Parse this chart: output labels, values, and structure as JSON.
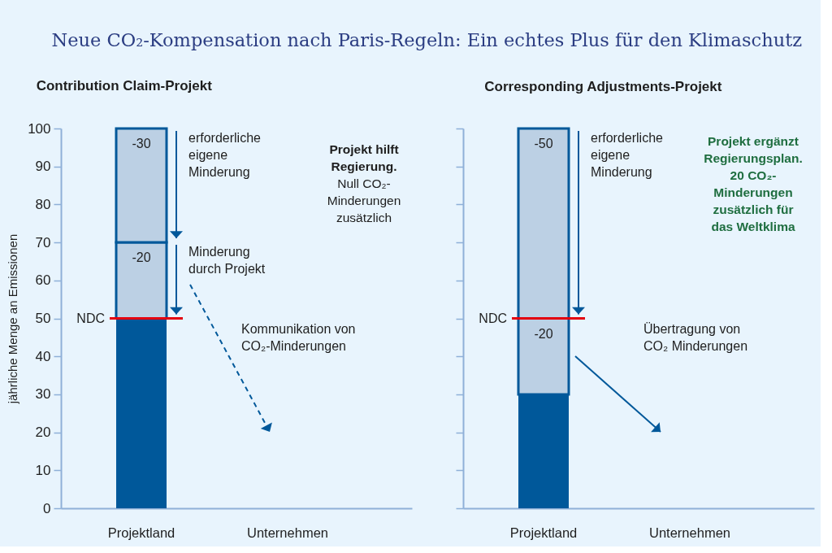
{
  "chart_data": [
    {
      "type": "bar",
      "title": "Neue CO₂-Kompensation nach Paris-Regeln: Ein echtes Plus für den Klimaschutz",
      "subtitle": "Contribution Claim-Projekt",
      "ylabel": "jährliche Menge an Emissionen",
      "categories": [
        "Projektland",
        "Unternehmen"
      ],
      "stacked": true,
      "series": [
        {
          "color": "#00589a",
          "values": [
            50,
            null
          ]
        },
        {
          "name": "Minderung durch Projekt",
          "color": "#bcd0e4",
          "values": [
            20,
            null
          ]
        },
        {
          "name": "erforderliche eigene Minderung",
          "color": "#bcd0e4",
          "values": [
            30,
            null
          ]
        }
      ],
      "ylim": [
        0,
        100
      ],
      "yticks": [
        0,
        10,
        20,
        30,
        40,
        50,
        60,
        70,
        80,
        90,
        100
      ],
      "ref_lines": [
        {
          "axis": "y",
          "value": 50,
          "label": "NDC",
          "color": "#e3000f"
        }
      ],
      "annotations": [
        "Projekt hilft Regierung. Null CO₂-Minderungen zusätzlich",
        "Kommunikation von CO₂-Minderungen",
        "-20",
        "-30"
      ]
    },
    {
      "type": "bar",
      "subtitle": "Corresponding Adjustments-Projekt",
      "categories": [
        "Projektland",
        "Unternehmen"
      ],
      "stacked": true,
      "series": [
        {
          "color": "#00589a",
          "values": [
            30,
            null
          ]
        },
        {
          "color": "#bcd0e4",
          "values": [
            20,
            null
          ]
        },
        {
          "name": "erforderliche eigene Minderung",
          "color": "#bcd0e4",
          "values": [
            50,
            null
          ]
        }
      ],
      "ylim": [
        0,
        100
      ],
      "yticks": [
        0,
        10,
        20,
        30,
        40,
        50,
        60,
        70,
        80,
        90,
        100
      ],
      "tick_labels": "x",
      "ref_lines": [
        {
          "axis": "y",
          "value": 50,
          "label": "NDC",
          "color": "#e3000f"
        }
      ],
      "annotations": [
        "Projekt ergänzt Regierungsplan. 20 CO₂-Minderungen zusätzlich für das Weltklima",
        "Übertragung von CO₂ Minderungen",
        "-20",
        "-50"
      ]
    }
  ]
}
